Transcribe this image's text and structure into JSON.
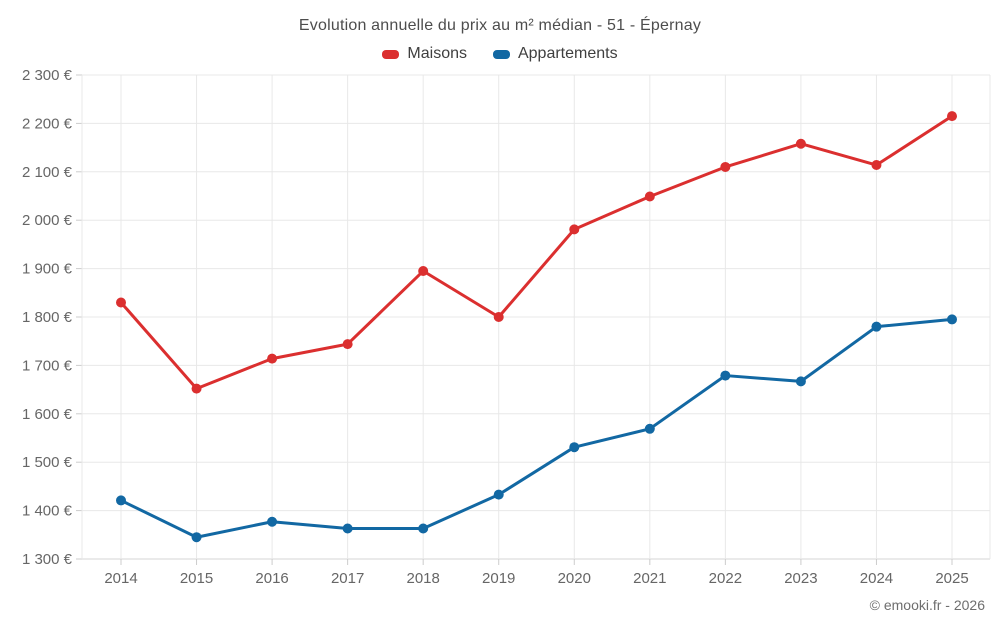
{
  "chart_data": {
    "type": "line",
    "title": "Evolution annuelle du prix au m² médian - 51 - Épernay",
    "categories": [
      "2014",
      "2015",
      "2016",
      "2017",
      "2018",
      "2019",
      "2020",
      "2021",
      "2022",
      "2023",
      "2024",
      "2025"
    ],
    "series": [
      {
        "name": "Maisons",
        "color": "#db2f2f",
        "values": [
          1830,
          1652,
          1714,
          1744,
          1895,
          1800,
          1981,
          2049,
          2110,
          2158,
          2114,
          2215
        ]
      },
      {
        "name": "Appartements",
        "color": "#1268a3",
        "values": [
          1421,
          1345,
          1377,
          1363,
          1363,
          1433,
          1531,
          1569,
          1679,
          1667,
          1780,
          1795
        ]
      }
    ],
    "ylim": [
      1300,
      2300
    ],
    "ytick_step": 100,
    "ytick_labels": [
      "1 300 €",
      "1 400 €",
      "1 500 €",
      "1 600 €",
      "1 700 €",
      "1 800 €",
      "1 900 €",
      "2 000 €",
      "2 100 €",
      "2 200 €",
      "2 300 €"
    ],
    "ylabel": "",
    "xlabel": "",
    "grid": true,
    "legend_position": "top",
    "copyright": "© emooki.fr - 2026",
    "colors": {
      "grid": "#e8e8e8",
      "axis": "#d6d6d6",
      "tick": "#cccccc",
      "axis_text": "#666666",
      "title_text": "#4d4d4d"
    }
  }
}
